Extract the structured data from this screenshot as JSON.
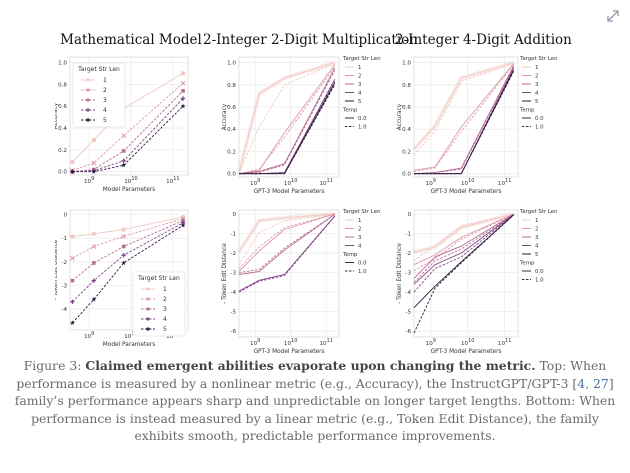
{
  "expand_icon": "expand-diagonal-icon",
  "column_titles": [
    "Mathematical Model",
    "2-Integer 2-Digit Multiplication",
    "2-Integer 4-Digit Addition"
  ],
  "caption": {
    "figure_label": "Figure 3: ",
    "bold": "Claimed emergent abilities evaporate upon changing the metric.",
    "text_before_cite": " Top: When performance is measured by a nonlinear metric (e.g., Accuracy), the InstructGPT/GPT-3 [",
    "cite1": "4",
    "cite_sep": ", ",
    "cite2": "27",
    "text_after_cite": "] family’s performance appears sharp and unpredictable on longer target lengths. Bottom: When performance is instead measured by a linear metric (e.g., Token Edit Distance), the family exhibits smooth, predictable performance improvements."
  },
  "colors": {
    "len1": "#f0c9c2",
    "len2": "#de9aa6",
    "len3": "#b86b94",
    "len4": "#804585",
    "len5": "#2c1a3f",
    "axis_text": "#333333"
  },
  "chart_data": [
    {
      "type": "line",
      "panel": "Mathematical Model (top)",
      "xlabel": "Model Parameters",
      "ylabel": "Accuracy",
      "xscale": "log",
      "xticks": [
        "10^9",
        "10^10",
        "10^11"
      ],
      "xlim": [
        350000000.0,
        230000000000.0
      ],
      "ylim": [
        -0.03,
        1.05
      ],
      "yticks": [
        "0.0",
        "0.2",
        "0.4",
        "0.6",
        "0.8",
        "1.0"
      ],
      "grid": true,
      "legend_title": "Target Str Len",
      "legend_position": "top-left",
      "x": [
        400000000.0,
        1300000000.0,
        6700000000.0,
        175000000000.0
      ],
      "series": [
        {
          "name": "1",
          "values": [
            0.09,
            0.29,
            0.58,
            0.9
          ],
          "marker": "circle"
        },
        {
          "name": "2",
          "values": [
            0.01,
            0.08,
            0.33,
            0.81
          ],
          "marker": "x"
        },
        {
          "name": "3",
          "values": [
            0.0,
            0.02,
            0.19,
            0.74
          ],
          "marker": "square"
        },
        {
          "name": "4",
          "values": [
            0.0,
            0.01,
            0.1,
            0.67
          ],
          "marker": "plus"
        },
        {
          "name": "5",
          "values": [
            0.0,
            0.0,
            0.06,
            0.6
          ],
          "marker": "star"
        }
      ]
    },
    {
      "type": "line",
      "panel": "2-Integer 2-Digit Multiplication (top)",
      "xlabel": "GPT-3 Model Parameters",
      "ylabel": "Accuracy",
      "xscale": "log",
      "xticks": [
        "10^9",
        "10^10",
        "10^11"
      ],
      "xlim": [
        350000000.0,
        230000000000.0
      ],
      "ylim": [
        -0.03,
        1.05
      ],
      "yticks": [
        "0.0",
        "0.2",
        "0.4",
        "0.6",
        "0.8",
        "1.0"
      ],
      "grid": true,
      "legend_title": "Target Str Len",
      "legend_entries": [
        "1",
        "2",
        "3",
        "4",
        "5"
      ],
      "legend_subtitle": "Temp",
      "legend_temps": [
        "0.0",
        "1.0"
      ],
      "legend_position": "right-outside",
      "x": [
        350000000.0,
        1300000000.0,
        6700000000.0,
        175000000000.0
      ],
      "series": [
        {
          "name": "1",
          "temp": "0.0",
          "values": [
            0.01,
            0.72,
            0.86,
            1.0
          ]
        },
        {
          "name": "1",
          "temp": "1.0",
          "values": [
            0.0,
            0.42,
            0.8,
            0.99
          ]
        },
        {
          "name": "2",
          "temp": "0.0",
          "values": [
            0.0,
            0.03,
            0.37,
            0.98
          ]
        },
        {
          "name": "2",
          "temp": "1.0",
          "values": [
            0.0,
            0.04,
            0.33,
            0.96
          ]
        },
        {
          "name": "3",
          "temp": "0.0",
          "values": [
            0.0,
            0.02,
            0.09,
            0.95
          ]
        },
        {
          "name": "3",
          "temp": "1.0",
          "values": [
            0.0,
            0.01,
            0.08,
            0.93
          ]
        },
        {
          "name": "4",
          "temp": "0.0",
          "values": [
            0.0,
            0.0,
            0.01,
            0.85
          ]
        },
        {
          "name": "4",
          "temp": "1.0",
          "values": [
            0.0,
            0.0,
            0.01,
            0.83
          ]
        },
        {
          "name": "5",
          "temp": "0.0",
          "values": [
            0.0,
            0.0,
            0.0,
            0.82
          ]
        },
        {
          "name": "5",
          "temp": "1.0",
          "values": [
            0.0,
            0.0,
            0.0,
            0.8
          ]
        }
      ]
    },
    {
      "type": "line",
      "panel": "2-Integer 4-Digit Addition (top)",
      "xlabel": "GPT-3 Model Parameters",
      "ylabel": "Accuracy",
      "xscale": "log",
      "xticks": [
        "10^9",
        "10^10",
        "10^11"
      ],
      "xlim": [
        350000000.0,
        230000000000.0
      ],
      "ylim": [
        -0.03,
        1.05
      ],
      "yticks": [
        "0.0",
        "0.2",
        "0.4",
        "0.6",
        "0.8",
        "1.0"
      ],
      "grid": true,
      "legend_title": "Target Str Len",
      "legend_entries": [
        "1",
        "2",
        "3",
        "4",
        "5"
      ],
      "legend_subtitle": "Temp",
      "legend_temps": [
        "0.0",
        "1.0"
      ],
      "legend_position": "right-outside",
      "x": [
        350000000.0,
        1300000000.0,
        6700000000.0,
        175000000000.0
      ],
      "series": [
        {
          "name": "1",
          "temp": "0.0",
          "values": [
            0.22,
            0.43,
            0.86,
            1.0
          ]
        },
        {
          "name": "1",
          "temp": "1.0",
          "values": [
            0.17,
            0.38,
            0.83,
            0.99
          ]
        },
        {
          "name": "2",
          "temp": "0.0",
          "values": [
            0.03,
            0.06,
            0.42,
            0.99
          ]
        },
        {
          "name": "2",
          "temp": "1.0",
          "values": [
            0.02,
            0.05,
            0.38,
            0.98
          ]
        },
        {
          "name": "3",
          "temp": "0.0",
          "values": [
            0.0,
            0.01,
            0.05,
            0.97
          ]
        },
        {
          "name": "3",
          "temp": "1.0",
          "values": [
            0.0,
            0.01,
            0.04,
            0.96
          ]
        },
        {
          "name": "4",
          "temp": "0.0",
          "values": [
            0.0,
            0.0,
            0.0,
            0.95
          ]
        },
        {
          "name": "4",
          "temp": "1.0",
          "values": [
            0.0,
            0.0,
            0.0,
            0.94
          ]
        },
        {
          "name": "5",
          "temp": "0.0",
          "values": [
            0.0,
            0.0,
            0.0,
            0.93
          ]
        },
        {
          "name": "5",
          "temp": "1.0",
          "values": [
            0.0,
            0.0,
            0.0,
            0.92
          ]
        }
      ]
    },
    {
      "type": "line",
      "panel": "Mathematical Model (bottom)",
      "xlabel": "Model Parameters",
      "ylabel": "- Token Edit Distance",
      "xscale": "log",
      "xticks": [
        "10^9",
        "10^10",
        "10^11"
      ],
      "xlim": [
        350000000.0,
        230000000000.0
      ],
      "ylim": [
        -4.9,
        0.2
      ],
      "yticks": [
        "-4",
        "-3",
        "-2",
        "-1",
        "0"
      ],
      "grid": true,
      "legend_title": "Target Str Len",
      "legend_position": "lower-right",
      "x": [
        400000000.0,
        1300000000.0,
        6700000000.0,
        175000000000.0
      ],
      "series": [
        {
          "name": "1",
          "values": [
            -0.93,
            -0.81,
            -0.63,
            -0.1
          ],
          "marker": "circle"
        },
        {
          "name": "2",
          "values": [
            -1.85,
            -1.35,
            -0.92,
            -0.17
          ],
          "marker": "x"
        },
        {
          "name": "3",
          "values": [
            -2.8,
            -2.05,
            -1.35,
            -0.25
          ],
          "marker": "square"
        },
        {
          "name": "4",
          "values": [
            -3.7,
            -2.8,
            -1.72,
            -0.35
          ],
          "marker": "plus"
        },
        {
          "name": "5",
          "values": [
            -4.6,
            -3.6,
            -2.05,
            -0.45
          ],
          "marker": "star"
        }
      ]
    },
    {
      "type": "line",
      "panel": "2-Integer 2-Digit Multiplication (bottom)",
      "xlabel": "GPT-3 Model Parameters",
      "ylabel": "- Token Edit Distance",
      "xscale": "log",
      "xticks": [
        "10^9",
        "10^10",
        "10^11"
      ],
      "xlim": [
        350000000.0,
        230000000000.0
      ],
      "ylim": [
        -6.3,
        0.2
      ],
      "yticks": [
        "-6",
        "-5",
        "-4",
        "-3",
        "-2",
        "-1",
        "0"
      ],
      "grid": true,
      "legend_title": "Target Str Len",
      "legend_entries": [
        "1",
        "2",
        "3",
        "4"
      ],
      "legend_subtitle": "Temp",
      "legend_temps": [
        "0.0",
        "1.0"
      ],
      "legend_position": "right-outside",
      "x": [
        350000000.0,
        1300000000.0,
        6700000000.0,
        175000000000.0
      ],
      "series": [
        {
          "name": "1",
          "temp": "0.0",
          "values": [
            -1.95,
            -0.35,
            -0.2,
            0.0
          ]
        },
        {
          "name": "1",
          "temp": "1.0",
          "values": [
            -2.6,
            -0.95,
            -0.35,
            -0.01
          ]
        },
        {
          "name": "2",
          "temp": "0.0",
          "values": [
            -2.95,
            -1.9,
            -0.8,
            0.0
          ]
        },
        {
          "name": "2",
          "temp": "1.0",
          "values": [
            -2.8,
            -1.7,
            -0.7,
            -0.01
          ]
        },
        {
          "name": "3",
          "temp": "0.0",
          "values": [
            -3.1,
            -2.95,
            -1.85,
            -0.02
          ]
        },
        {
          "name": "3",
          "temp": "1.0",
          "values": [
            -3.0,
            -2.85,
            -1.75,
            -0.03
          ]
        },
        {
          "name": "4",
          "temp": "0.0",
          "values": [
            -3.95,
            -3.4,
            -3.1,
            -0.1
          ]
        },
        {
          "name": "4",
          "temp": "1.0",
          "values": [
            -4.0,
            -3.45,
            -3.15,
            -0.12
          ]
        }
      ]
    },
    {
      "type": "line",
      "panel": "2-Integer 4-Digit Addition (bottom)",
      "xlabel": "GPT-3 Model Parameters",
      "ylabel": "- Token Edit Distance",
      "xscale": "log",
      "xticks": [
        "10^9",
        "10^10",
        "10^11"
      ],
      "xlim": [
        350000000.0,
        230000000000.0
      ],
      "ylim": [
        -6.3,
        0.2
      ],
      "yticks": [
        "-6",
        "-5",
        "-4",
        "-3",
        "-2",
        "-1",
        "0"
      ],
      "grid": true,
      "legend_title": "Target Str Len",
      "legend_entries": [
        "1",
        "2",
        "3",
        "4",
        "5"
      ],
      "legend_subtitle": "Temp",
      "legend_temps": [
        "0.0",
        "1.0"
      ],
      "legend_position": "right-outside",
      "x": [
        350000000.0,
        1300000000.0,
        6700000000.0,
        175000000000.0
      ],
      "series": [
        {
          "name": "1",
          "temp": "0.0",
          "values": [
            -1.95,
            -1.7,
            -0.7,
            0.0
          ]
        },
        {
          "name": "1",
          "temp": "1.0",
          "values": [
            -2.4,
            -1.6,
            -0.6,
            -0.01
          ]
        },
        {
          "name": "2",
          "temp": "0.0",
          "values": [
            -2.6,
            -2.1,
            -1.2,
            -0.01
          ]
        },
        {
          "name": "2",
          "temp": "1.0",
          "values": [
            -2.9,
            -2.3,
            -1.3,
            -0.02
          ]
        },
        {
          "name": "3",
          "temp": "0.0",
          "values": [
            -3.3,
            -2.2,
            -1.65,
            -0.02
          ]
        },
        {
          "name": "3",
          "temp": "1.0",
          "values": [
            -3.5,
            -2.4,
            -1.8,
            -0.03
          ]
        },
        {
          "name": "4",
          "temp": "0.0",
          "values": [
            -3.6,
            -2.6,
            -2.0,
            -0.03
          ]
        },
        {
          "name": "4",
          "temp": "1.0",
          "values": [
            -4.0,
            -2.8,
            -2.2,
            -0.04
          ]
        },
        {
          "name": "5",
          "temp": "0.0",
          "values": [
            -4.8,
            -3.7,
            -2.45,
            -0.05
          ]
        },
        {
          "name": "5",
          "temp": "1.0",
          "values": [
            -6.1,
            -3.8,
            -2.5,
            -0.06
          ]
        }
      ]
    }
  ]
}
